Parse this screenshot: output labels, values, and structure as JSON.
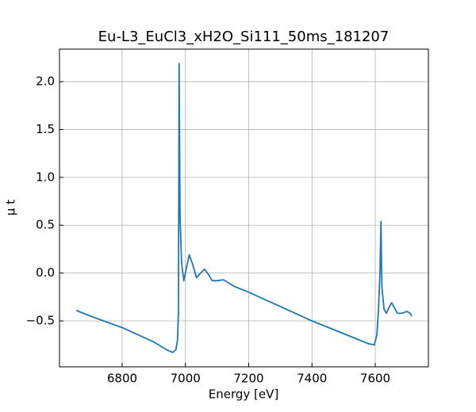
{
  "chart_data": {
    "type": "line",
    "title": "Eu-L3_EuCl3_xH2O_Si111_50ms_181207",
    "x_label": "Energy [eV]",
    "y_label": "μ t",
    "series": [
      {
        "name": "Eu-L3_EuCl3_xH2O_Si111_50ms_181207",
        "color": "#1f77b4",
        "x": [
          6655,
          6700,
          6800,
          6900,
          6940,
          6960,
          6970,
          6975,
          6978,
          6980,
          6983,
          6988,
          6995,
          7003,
          7012,
          7022,
          7035,
          7048,
          7060,
          7070,
          7085,
          7100,
          7120,
          7135,
          7155,
          7200,
          7400,
          7580,
          7597,
          7605,
          7610,
          7615,
          7618,
          7621,
          7628,
          7635,
          7645,
          7652,
          7660,
          7670,
          7685,
          7700,
          7710,
          7715
        ],
        "values": [
          -0.39,
          -0.45,
          -0.57,
          -0.72,
          -0.8,
          -0.83,
          -0.8,
          -0.7,
          -0.4,
          2.19,
          0.6,
          0.1,
          -0.08,
          0.05,
          0.19,
          0.1,
          -0.05,
          0.0,
          0.04,
          0.0,
          -0.08,
          -0.08,
          -0.07,
          -0.1,
          -0.14,
          -0.2,
          -0.5,
          -0.74,
          -0.75,
          -0.65,
          -0.4,
          0.0,
          0.54,
          -0.15,
          -0.38,
          -0.42,
          -0.35,
          -0.31,
          -0.36,
          -0.42,
          -0.42,
          -0.4,
          -0.42,
          -0.45
        ]
      }
    ],
    "xlim": [
      6602,
      7768
    ],
    "xticks": [
      6800,
      7000,
      7200,
      7400,
      7600
    ],
    "ylim": [
      -0.98,
      2.34
    ],
    "yticks": [
      {
        "value": -0.5,
        "label": "−0.5"
      },
      {
        "value": 0.0,
        "label": "0.0"
      },
      {
        "value": 0.5,
        "label": "0.5"
      },
      {
        "value": 1.0,
        "label": "1.0"
      },
      {
        "value": 1.5,
        "label": "1.5"
      },
      {
        "value": 2.0,
        "label": "2.0"
      }
    ],
    "grid": true
  }
}
